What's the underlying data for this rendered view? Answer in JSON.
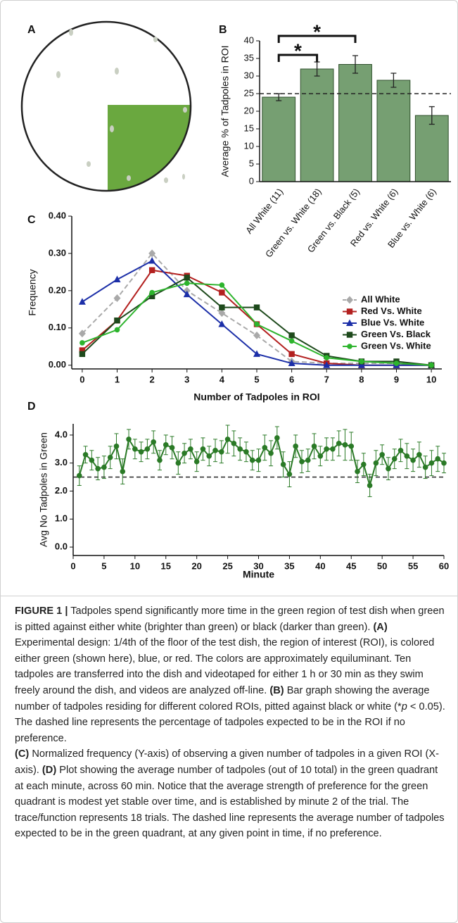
{
  "panel_a": {
    "label": "A"
  },
  "chart_data": [
    {
      "type": "bar",
      "panel": "B",
      "ylabel": "Average % of Tadpoles in ROI",
      "categories": [
        "All White (11)",
        "Green vs. White (18)",
        "Green vs. Black (5)",
        "Red vs. White (6)",
        "Blue vs. White (6)"
      ],
      "values": [
        24,
        32,
        33.3,
        28.8,
        18.8
      ],
      "errors": [
        1,
        2,
        2.5,
        2,
        2.5
      ],
      "color": "#769f72",
      "edge_color": "#2f4f2c",
      "ylim": [
        0,
        40
      ],
      "yticks": [
        0,
        5,
        10,
        15,
        20,
        25,
        30,
        35,
        40
      ],
      "reference_line": 25,
      "significance": [
        {
          "from": 0,
          "to": 1,
          "label": "*"
        },
        {
          "from": 0,
          "to": 2,
          "label": "*"
        }
      ]
    },
    {
      "type": "line",
      "panel": "C",
      "xlabel": "Number of Tadpoles in ROI",
      "ylabel": "Frequency",
      "x": [
        0,
        1,
        2,
        3,
        4,
        5,
        6,
        7,
        8,
        9,
        10
      ],
      "series": [
        {
          "name": "All White",
          "color": "#a9a9a9",
          "marker": "diamond",
          "dashed": true,
          "values": [
            0.085,
            0.18,
            0.3,
            0.2,
            0.14,
            0.08,
            0.01,
            0.005,
            0.005,
            0.005,
            0
          ]
        },
        {
          "name": "Red Vs. White",
          "color": "#b3201f",
          "marker": "square",
          "dashed": false,
          "values": [
            0.04,
            0.12,
            0.255,
            0.24,
            0.195,
            0.11,
            0.03,
            0.005,
            0,
            0,
            0
          ]
        },
        {
          "name": "Blue Vs. White",
          "color": "#1c2fa8",
          "marker": "triangle",
          "dashed": false,
          "values": [
            0.17,
            0.23,
            0.28,
            0.19,
            0.11,
            0.03,
            0.005,
            0,
            0,
            0,
            0
          ]
        },
        {
          "name": "Green Vs. Black",
          "color": "#1e4a1c",
          "marker": "square",
          "dashed": false,
          "values": [
            0.03,
            0.12,
            0.185,
            0.235,
            0.155,
            0.155,
            0.08,
            0.025,
            0.01,
            0.01,
            0
          ]
        },
        {
          "name": "Green Vs. White",
          "color": "#2db42d",
          "marker": "circle",
          "dashed": false,
          "values": [
            0.06,
            0.095,
            0.195,
            0.22,
            0.215,
            0.11,
            0.065,
            0.02,
            0.01,
            0.005,
            0
          ]
        }
      ],
      "xlim": [
        -0.3,
        10.3
      ],
      "xticks": [
        0,
        1,
        2,
        3,
        4,
        5,
        6,
        7,
        8,
        9,
        10
      ],
      "ylim": [
        -0.01,
        0.4
      ],
      "yticks": [
        {
          "value": 0,
          "label": "0.00"
        },
        {
          "value": 0.1,
          "label": "0.10"
        },
        {
          "value": 0.2,
          "label": "0.20"
        },
        {
          "value": 0.3,
          "label": "0.30"
        },
        {
          "value": 0.4,
          "label": "0.40"
        }
      ],
      "legend": "right"
    },
    {
      "type": "line",
      "panel": "D",
      "xlabel": "Minute",
      "ylabel": "Avg No Tadpoles in Green",
      "x": [
        1,
        2,
        3,
        4,
        5,
        6,
        7,
        8,
        9,
        10,
        11,
        12,
        13,
        14,
        15,
        16,
        17,
        18,
        19,
        20,
        21,
        22,
        23,
        24,
        25,
        26,
        27,
        28,
        29,
        30,
        31,
        32,
        33,
        34,
        35,
        36,
        37,
        38,
        39,
        40,
        41,
        42,
        43,
        44,
        45,
        46,
        47,
        48,
        49,
        50,
        51,
        52,
        53,
        54,
        55,
        56,
        57,
        58,
        59,
        60
      ],
      "series": [
        {
          "color": "#2a7a26",
          "marker": "circle",
          "dashed": false,
          "values": [
            2.55,
            3.3,
            3.1,
            2.8,
            2.85,
            3.2,
            3.6,
            2.7,
            3.85,
            3.5,
            3.4,
            3.5,
            3.75,
            3.1,
            3.65,
            3.55,
            3.0,
            3.35,
            3.5,
            3.05,
            3.5,
            3.25,
            3.45,
            3.4,
            3.85,
            3.7,
            3.5,
            3.4,
            3.1,
            3.1,
            3.55,
            3.35,
            3.9,
            2.95,
            2.6,
            3.6,
            3.05,
            3.1,
            3.6,
            3.25,
            3.5,
            3.5,
            3.7,
            3.65,
            3.6,
            2.7,
            2.95,
            2.2,
            3.0,
            3.3,
            2.8,
            3.15,
            3.45,
            3.25,
            3.1,
            3.3,
            2.85,
            3.0,
            3.15,
            3.0
          ],
          "errors": [
            0.35,
            0.3,
            0.35,
            0.4,
            0.4,
            0.4,
            0.45,
            0.45,
            0.35,
            0.35,
            0.35,
            0.35,
            0.4,
            0.35,
            0.35,
            0.4,
            0.4,
            0.35,
            0.35,
            0.35,
            0.4,
            0.35,
            0.4,
            0.4,
            0.5,
            0.45,
            0.4,
            0.35,
            0.35,
            0.4,
            0.45,
            0.45,
            0.4,
            0.45,
            0.45,
            0.4,
            0.4,
            0.4,
            0.45,
            0.35,
            0.4,
            0.4,
            0.45,
            0.55,
            0.5,
            0.4,
            0.4,
            0.4,
            0.45,
            0.35,
            0.4,
            0.35,
            0.4,
            0.45,
            0.4,
            0.45,
            0.4,
            0.45,
            0.45,
            0.35
          ]
        }
      ],
      "xlim": [
        0,
        60
      ],
      "xticks": [
        0,
        5,
        10,
        15,
        20,
        25,
        30,
        35,
        40,
        45,
        50,
        55,
        60
      ],
      "ylim": [
        -0.3,
        4.4
      ],
      "yticks": [
        {
          "value": 0,
          "label": "0.0"
        },
        {
          "value": 1,
          "label": "1.0"
        },
        {
          "value": 2,
          "label": "2.0"
        },
        {
          "value": 3,
          "label": "3.0"
        },
        {
          "value": 4,
          "label": "4.0"
        }
      ],
      "reference_line": 2.5
    }
  ],
  "caption": [
    [
      {
        "text": "FIGURE 1 |",
        "bold": true
      },
      {
        "text": " Tadpoles spend significantly more time in the green region of test dish when green is pitted against either white (brighter than green) or black (darker than green). ",
        "bold": false
      },
      {
        "text": "(A)",
        "bold": true
      },
      {
        "text": " Experimental design: 1/4th of the floor of the test dish, the region of interest (ROI), is colored either green (shown here), blue, or red. The colors are approximately equiluminant. Ten tadpoles are transferred into the dish and videotaped for either 1 h or 30 min as they swim freely around the dish, and videos are analyzed off-line. ",
        "bold": false
      },
      {
        "text": "(B)",
        "bold": true
      },
      {
        "text": " Bar graph showing the average number of tadpoles residing for different colored ROIs, pitted against black or white (*",
        "bold": false
      },
      {
        "text": "p",
        "bold": false,
        "italic": true
      },
      {
        "text": " < 0.05). The dashed line represents the percentage of tadpoles expected to be in the ROI if no preference.",
        "bold": false
      }
    ],
    [
      {
        "text": "(C)",
        "bold": true
      },
      {
        "text": " Normalized frequency (Y-axis) of observing a given number of tadpoles in a given ROI (X-axis). ",
        "bold": false
      },
      {
        "text": "(D)",
        "bold": true
      },
      {
        "text": " Plot showing the average number of tadpoles (out of 10 total) in the green quadrant at each minute, across 60 min. Notice that the average strength of preference for the green quadrant is modest yet stable over time, and is established by minute 2 of the trial. The trace/function represents 18 trials. The dashed line represents the average number of tadpoles expected to be in the green quadrant, at any given point in time, if no preference.",
        "bold": false
      }
    ]
  ]
}
